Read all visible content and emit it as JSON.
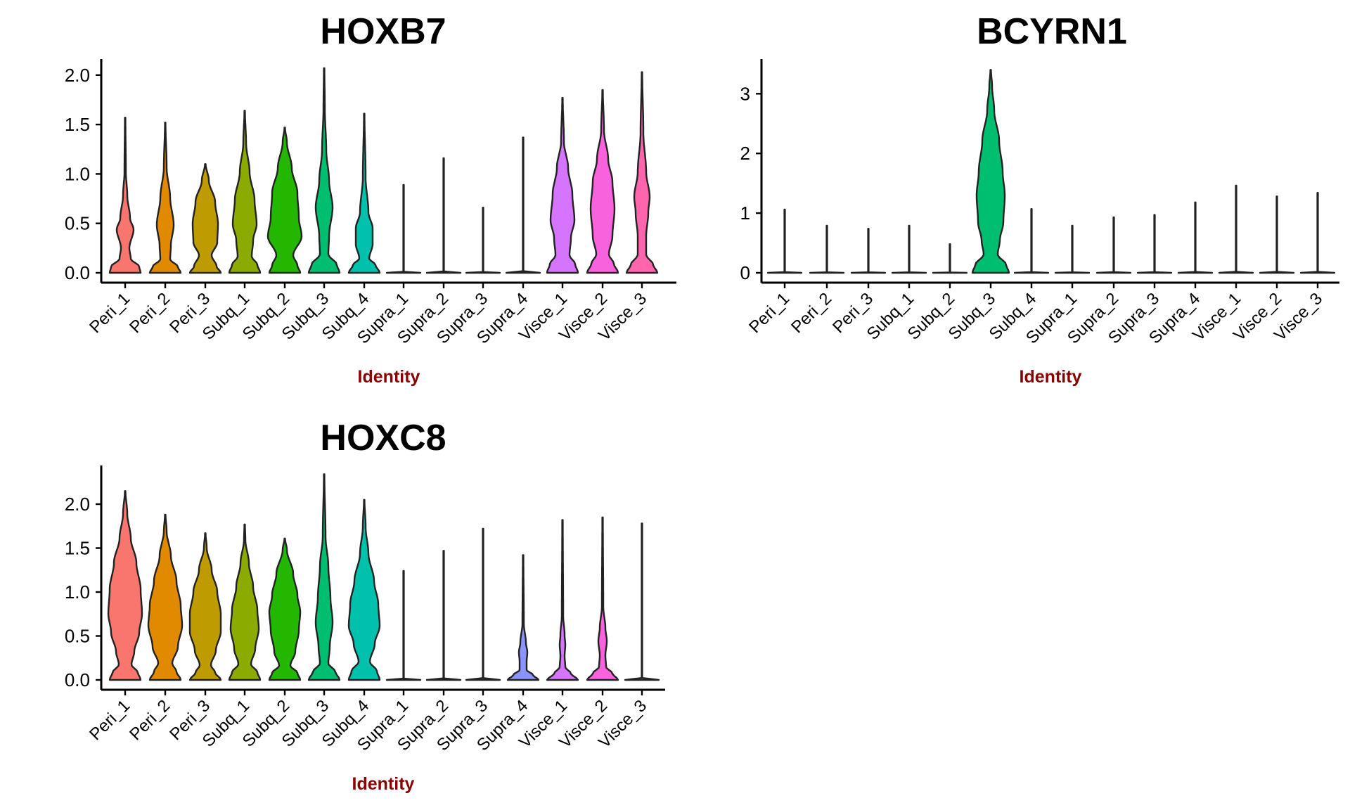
{
  "colors": {
    "Peri_1": "#F8766D",
    "Peri_2": "#E18A00",
    "Peri_3": "#BE9C00",
    "Subq_1": "#8CAB00",
    "Subq_2": "#24B700",
    "Subq_3": "#00BE70",
    "Subq_4": "#00C1AB",
    "Supra_1": "#00BBDA",
    "Supra_2": "#00ACFC",
    "Supra_3": "#8B93FF",
    "Supra_4": "#8B93FF",
    "Visce_1": "#D575FE",
    "Visce_2": "#F962DD",
    "Visce_3": "#FF65AC"
  },
  "chart_data": [
    {
      "type": "violin",
      "title": "HOXB7",
      "xlabel": "Identity",
      "ylabel": "",
      "ylim": [
        0,
        2.17
      ],
      "yticks": [
        "0.0",
        "0.5",
        "1.0",
        "1.5",
        "2.0"
      ],
      "categories": [
        "Peri_1",
        "Peri_2",
        "Peri_3",
        "Subq_1",
        "Subq_2",
        "Subq_3",
        "Subq_4",
        "Supra_1",
        "Supra_2",
        "Supra_3",
        "Supra_4",
        "Visce_1",
        "Visce_2",
        "Visce_3"
      ],
      "max_values": [
        1.57,
        1.52,
        1.1,
        1.64,
        1.47,
        2.07,
        1.61,
        0.89,
        1.16,
        0.66,
        1.37,
        1.77,
        1.85,
        2.03
      ]
    },
    {
      "type": "violin",
      "title": "BCYRN1",
      "xlabel": "Identity",
      "ylabel": "",
      "ylim": [
        0,
        3.55
      ],
      "yticks": [
        "0",
        "1",
        "2",
        "3"
      ],
      "categories": [
        "Peri_1",
        "Peri_2",
        "Peri_3",
        "Subq_1",
        "Subq_2",
        "Subq_3",
        "Subq_4",
        "Supra_1",
        "Supra_2",
        "Supra_3",
        "Supra_4",
        "Visce_1",
        "Visce_2",
        "Visce_3"
      ],
      "max_values": [
        1.06,
        0.79,
        0.74,
        0.79,
        0.48,
        3.4,
        1.07,
        0.79,
        0.93,
        0.97,
        1.18,
        1.46,
        1.28,
        1.34
      ]
    },
    {
      "type": "violin",
      "title": "HOXC8",
      "xlabel": "Identity",
      "ylabel": "",
      "ylim": [
        0,
        2.45
      ],
      "yticks": [
        "0.0",
        "0.5",
        "1.0",
        "1.5",
        "2.0"
      ],
      "categories": [
        "Peri_1",
        "Peri_2",
        "Peri_3",
        "Subq_1",
        "Subq_2",
        "Subq_3",
        "Subq_4",
        "Supra_1",
        "Supra_2",
        "Supra_3",
        "Supra_4",
        "Visce_1",
        "Visce_2",
        "Visce_3"
      ],
      "max_values": [
        2.15,
        1.88,
        1.67,
        1.77,
        1.61,
        2.34,
        2.05,
        1.24,
        1.47,
        1.72,
        1.42,
        1.82,
        1.85,
        1.78
      ]
    }
  ]
}
